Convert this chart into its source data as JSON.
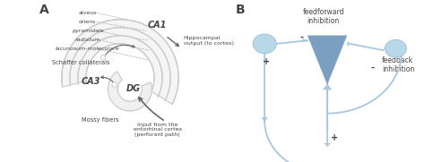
{
  "bg_color": "#ffffff",
  "panel_A_label": "A",
  "panel_B_label": "B",
  "label_CA1": "CA1",
  "label_CA3": "CA3",
  "label_DG": "DG",
  "layer_labels": [
    "alveus",
    "oriens",
    "pyramidale",
    "radiatum",
    "lacunosum-moleculare"
  ],
  "layer_italic": [
    false,
    false,
    true,
    true,
    true
  ],
  "label_schaffer": "Schaffer collaterals",
  "label_mossy": "Mossy fibers",
  "label_output": "Hippocampal\noutput (to cortex)",
  "label_input": "Input from the\nentorhinal cortex\n(perforant path)",
  "label_feedforward": "feedforward\ninhibition",
  "label_feedback": "feedback\ninhibition",
  "hip_color": "#cccccc",
  "line_color": "#a8c8df",
  "triangle_color": "#7b9fc0",
  "circle_color": "#b8d8e8",
  "text_color": "#444444",
  "arrow_color": "#666666",
  "dashed_color": "#aaaaaa"
}
